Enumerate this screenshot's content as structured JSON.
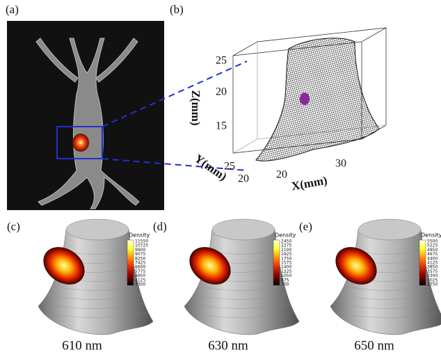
{
  "panels": {
    "a": {
      "label": "(a)"
    },
    "b": {
      "label": "(b)",
      "x_label": "X(mm)",
      "y_label": "Y(mm)",
      "z_label": "Z(mm)",
      "x_ticks": [
        20,
        30
      ],
      "y_ticks": [
        20,
        25
      ],
      "z_ticks": [
        15,
        20,
        25
      ]
    },
    "c": {
      "label": "(c)",
      "caption": "610 nm",
      "colorbar_title": "Density",
      "colorbar_ticks": [
        11550,
        10725,
        9900,
        9075,
        8250,
        7425,
        6600,
        5775,
        4950,
        4125,
        3300
      ]
    },
    "d": {
      "label": "(d)",
      "caption": "630 nm",
      "colorbar_title": "Density",
      "colorbar_ticks": [
        2450,
        2275,
        2100,
        1925,
        1750,
        1575,
        1400,
        1225,
        1050,
        875,
        700
      ]
    },
    "e": {
      "label": "(e)",
      "caption": "650 nm",
      "colorbar_title": "Density",
      "colorbar_ticks": [
        5500,
        5225,
        4950,
        4675,
        4400,
        4125,
        3850,
        3575,
        3300,
        3025,
        2750
      ]
    }
  }
}
